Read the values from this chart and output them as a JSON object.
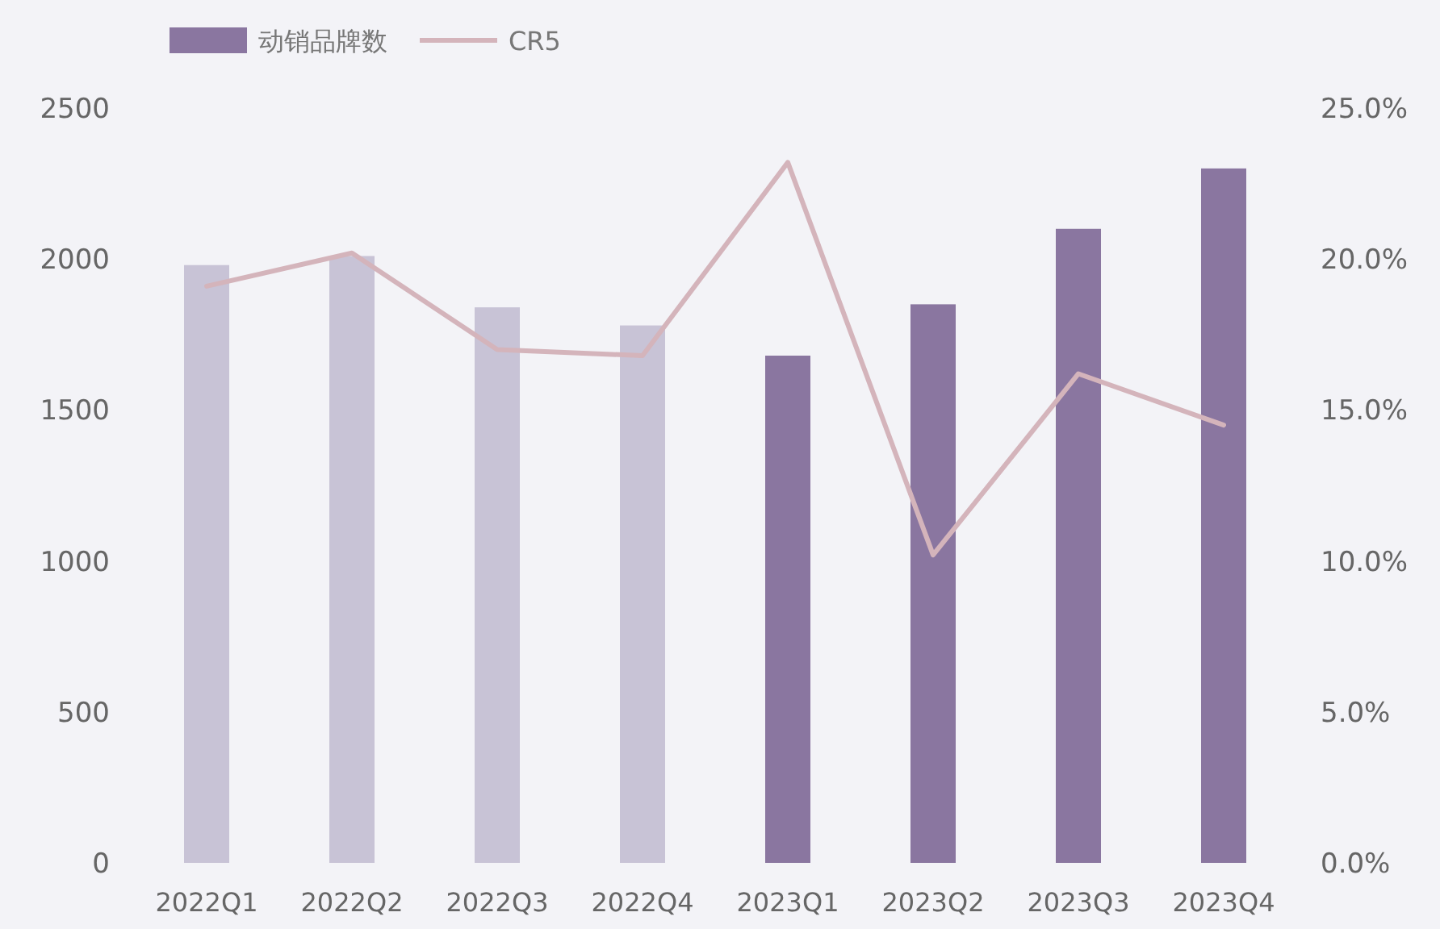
{
  "chart_data": {
    "type": "bar",
    "categories": [
      "2022Q1",
      "2022Q2",
      "2022Q3",
      "2022Q4",
      "2023Q1",
      "2023Q2",
      "2023Q3",
      "2023Q4"
    ],
    "series": [
      {
        "name": "动销品牌数",
        "type": "bar",
        "color": "#8a76a0",
        "colors": [
          "#c8c3d6",
          "#c8c3d6",
          "#c8c3d6",
          "#c8c3d6",
          "#8a76a0",
          "#8a76a0",
          "#8a76a0",
          "#8a76a0"
        ],
        "values": [
          1980,
          2010,
          1840,
          1780,
          1680,
          1850,
          2100,
          2300
        ]
      },
      {
        "name": "CR5",
        "type": "line",
        "axis": "y2",
        "color": "#d4b4bb",
        "values": [
          19.1,
          20.2,
          17.0,
          16.8,
          23.2,
          10.2,
          16.2,
          14.5
        ]
      }
    ],
    "ylim": [
      0,
      2500
    ],
    "yticks": [
      0,
      500,
      1000,
      1500,
      2000,
      2500
    ],
    "y2lim": [
      0,
      25
    ],
    "y2ticks": [
      {
        "value": 0,
        "label": "0.0%"
      },
      {
        "value": 5,
        "label": "5.0%"
      },
      {
        "value": 10,
        "label": "10.0%"
      },
      {
        "value": 15,
        "label": "15.0%"
      },
      {
        "value": 20,
        "label": "20.0%"
      },
      {
        "value": 25,
        "label": "25.0%"
      }
    ],
    "legend": "top left",
    "grid": false
  }
}
